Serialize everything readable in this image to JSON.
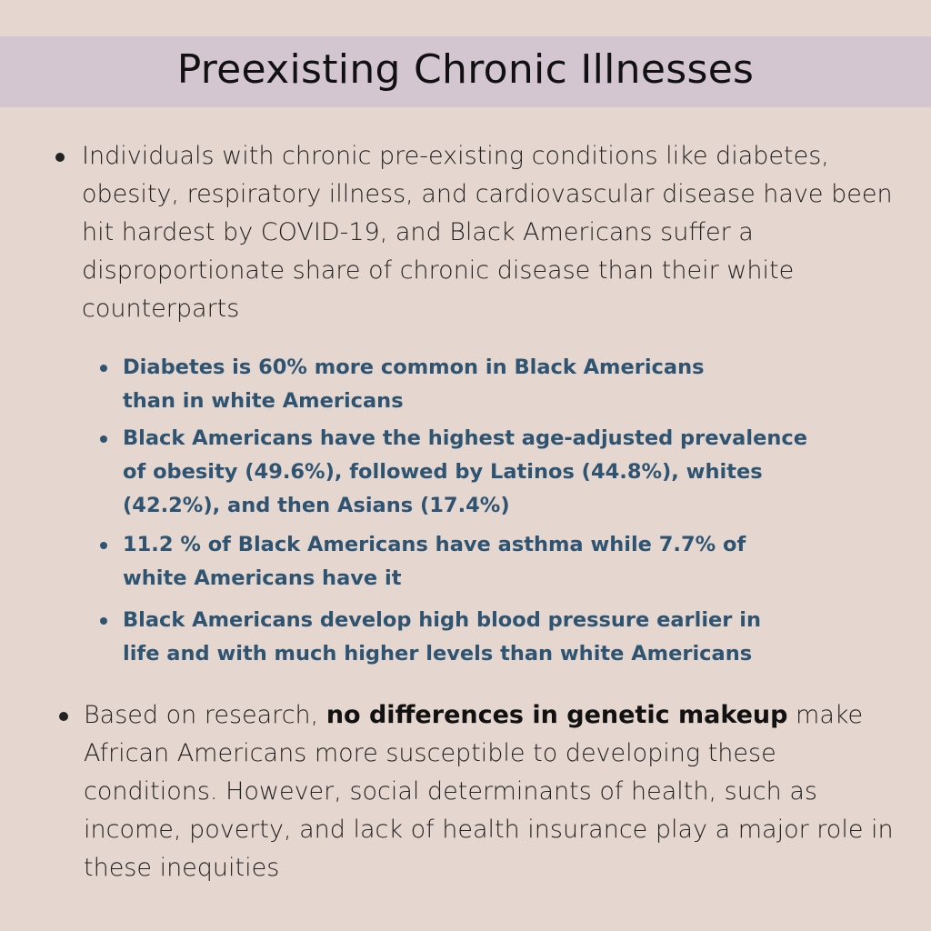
{
  "header": {
    "title": "Preexisting Chronic Illnesses"
  },
  "bullets": [
    {
      "lines": [
        "Individuals with chronic pre-existing conditions like diabetes,",
        "obesity, respiratory illness, and cardiovascular disease have been",
        "hit hardest by COVID-19, and Black Americans suffer a",
        "disproportionate share of chronic disease than their white",
        "counterparts"
      ]
    },
    {
      "line1_prefix": "Based on research, ",
      "line1_bold": "no differences in genetic makeup",
      "line1_suffix": " make",
      "lines": [
        "African Americans more susceptible to developing these",
        "conditions. However, social determinants of health, such as",
        "income, poverty, and lack of health insurance play a major role in",
        "these inequities"
      ]
    }
  ],
  "sub_bullets": [
    {
      "lines": [
        "Diabetes is 60% more common in Black Americans",
        "than in white Americans"
      ]
    },
    {
      "lines": [
        "Black Americans have the highest age-adjusted prevalence",
        "of obesity (49.6%), followed by Latinos (44.8%), whites",
        "(42.2%), and then Asians (17.4%)"
      ]
    },
    {
      "lines": [
        "11.2 % of Black Americans have asthma while 7.7% of",
        "white Americans have it"
      ]
    },
    {
      "lines": [
        "Black Americans develop high blood pressure earlier in",
        "life and with much higher levels than white Americans"
      ]
    }
  ],
  "colors": {
    "background": "#e5d7cf",
    "title_band": "#d3c6d0",
    "sub_bullet_text": "#2f5472"
  }
}
